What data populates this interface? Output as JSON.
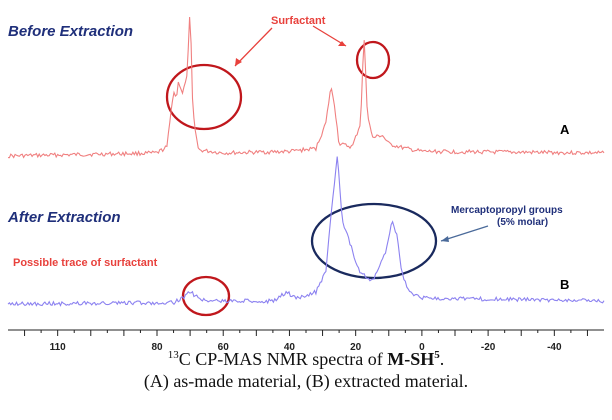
{
  "chart_data": {
    "type": "line",
    "x_axis": {
      "reversed": true,
      "xlim": [
        125,
        -55
      ],
      "tick_values": [
        110,
        80,
        60,
        40,
        20,
        0,
        -20,
        -40
      ],
      "tick_labels": [
        "110",
        "80",
        "60",
        "40",
        "20",
        "0",
        "-20",
        "-40"
      ]
    },
    "series": [
      {
        "name": "A",
        "color": "#f08080",
        "points": [
          [
            125,
            0.0
          ],
          [
            80,
            0.02
          ],
          [
            77,
            0.06
          ],
          [
            75,
            0.44
          ],
          [
            74.2,
            0.38
          ],
          [
            73.5,
            0.5
          ],
          [
            72.3,
            0.42
          ],
          [
            71,
            0.52
          ],
          [
            70,
            0.98
          ],
          [
            69.2,
            0.3
          ],
          [
            67.5,
            0.04
          ],
          [
            60,
            0.02
          ],
          [
            40,
            0.03
          ],
          [
            32,
            0.05
          ],
          [
            29,
            0.22
          ],
          [
            27.5,
            0.46
          ],
          [
            26.5,
            0.36
          ],
          [
            25,
            0.08
          ],
          [
            21,
            0.06
          ],
          [
            18.5,
            0.22
          ],
          [
            17.5,
            0.81
          ],
          [
            16.5,
            0.3
          ],
          [
            15,
            0.12
          ],
          [
            12,
            0.14
          ],
          [
            10,
            0.08
          ],
          [
            5,
            0.05
          ],
          [
            0,
            0.03
          ],
          [
            -55,
            0.02
          ]
        ]
      },
      {
        "name": "B",
        "color": "#8c82f0",
        "points": [
          [
            125,
            0.0
          ],
          [
            75,
            0.01
          ],
          [
            72,
            0.04
          ],
          [
            70,
            0.08
          ],
          [
            68,
            0.05
          ],
          [
            65,
            0.02
          ],
          [
            45,
            0.02
          ],
          [
            41,
            0.08
          ],
          [
            38,
            0.04
          ],
          [
            32,
            0.08
          ],
          [
            29,
            0.22
          ],
          [
            27,
            0.7
          ],
          [
            25.5,
            0.99
          ],
          [
            24,
            0.55
          ],
          [
            21,
            0.36
          ],
          [
            19,
            0.22
          ],
          [
            15,
            0.15
          ],
          [
            11,
            0.34
          ],
          [
            9,
            0.56
          ],
          [
            7.5,
            0.45
          ],
          [
            6,
            0.2
          ],
          [
            4,
            0.08
          ],
          [
            0,
            0.04
          ],
          [
            -55,
            0.02
          ]
        ]
      }
    ]
  },
  "annotations": {
    "before_extraction": "Before Extraction",
    "after_extraction": "After Extraction",
    "surfactant": "Surfactant",
    "mercaptopropyl": "Mercaptopropyl groups",
    "molar": "(5% molar)",
    "possible_trace": "Possible trace of surfactant",
    "label_a": "A",
    "label_b": "B"
  },
  "caption": {
    "prefix": "13",
    "line1_text": "C CP-MAS NMR spectra of ",
    "compound": "M-SH",
    "compound_sup": "5",
    "line1_end": ".",
    "line2": "(A) as-made material, (B) extracted material."
  },
  "colors": {
    "spectrum_a": "#f08080",
    "spectrum_b": "#8c82f0",
    "circle_red": "#c0171c",
    "circle_navy": "#1a2a5e",
    "annotation_red": "#e8413c",
    "annotation_navy": "#1f2f7a"
  }
}
